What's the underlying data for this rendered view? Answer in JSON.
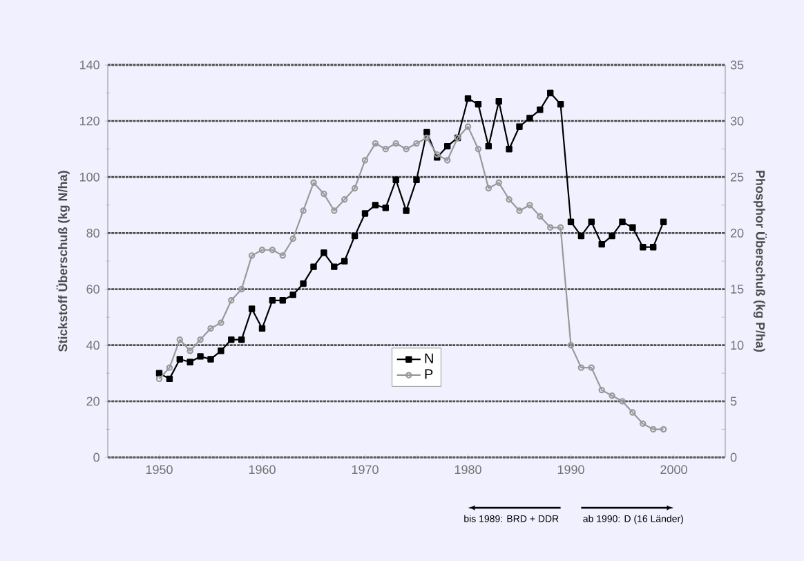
{
  "chart_data": {
    "type": "line",
    "ylabel": "Stickstoff Überschuß (kg N/ha)",
    "y2label": "Phosphor Überschuß (kg P/ha)",
    "x": [
      1950,
      1951,
      1952,
      1953,
      1954,
      1955,
      1956,
      1957,
      1958,
      1959,
      1960,
      1961,
      1962,
      1963,
      1964,
      1965,
      1966,
      1967,
      1968,
      1969,
      1970,
      1971,
      1972,
      1973,
      1974,
      1975,
      1976,
      1977,
      1978,
      1979,
      1980,
      1981,
      1982,
      1983,
      1984,
      1985,
      1986,
      1987,
      1988,
      1989,
      1990,
      1991,
      1992,
      1993,
      1994,
      1995,
      1996,
      1997,
      1998,
      1999
    ],
    "series": [
      {
        "name": "N",
        "color": "#000000",
        "marker": "square",
        "values": [
          30,
          28,
          35,
          34,
          36,
          35,
          38,
          42,
          42,
          53,
          46,
          56,
          56,
          58,
          62,
          68,
          73,
          68,
          70,
          79,
          87,
          90,
          89,
          99,
          88,
          99,
          116,
          107,
          111,
          114,
          128,
          126,
          111,
          127,
          110,
          118,
          121,
          124,
          130,
          126,
          84,
          79,
          84,
          76,
          79,
          84,
          82,
          75,
          75,
          84
        ]
      },
      {
        "name": "P",
        "color": "#999999",
        "marker": "circle",
        "axis": "y2",
        "values": [
          7,
          8,
          10.5,
          9.5,
          10.5,
          11.5,
          12,
          14,
          15,
          18,
          18.5,
          18.5,
          18,
          19.5,
          22,
          24.5,
          23.5,
          22,
          23,
          24,
          26.5,
          28,
          27.5,
          28,
          27.5,
          28,
          28.5,
          27,
          26.5,
          28.5,
          29.5,
          27.5,
          24,
          24.5,
          23,
          22,
          22.5,
          21.5,
          20.5,
          20.5,
          10,
          8,
          8,
          6,
          5.5,
          5,
          4,
          3,
          2.5,
          2.5
        ]
      }
    ],
    "xlim": [
      1945,
      2005
    ],
    "xticks": [
      1950,
      1960,
      1970,
      1980,
      1990,
      2000
    ],
    "ylim": [
      0,
      140
    ],
    "yticks": [
      0,
      20,
      40,
      60,
      80,
      100,
      120,
      140
    ],
    "y2lim": [
      0,
      35
    ],
    "y2ticks": [
      0,
      5,
      10,
      15,
      20,
      25,
      30,
      35
    ],
    "grid": "y",
    "legend": "bottom",
    "line_style": "solid",
    "annotations": [
      "bis 1989: BRD + DDR",
      "ab 1990: D (16 Länder)"
    ]
  }
}
